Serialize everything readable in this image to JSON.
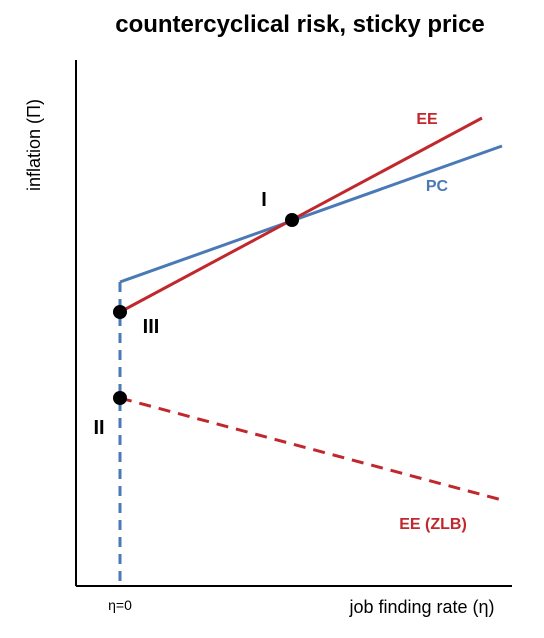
{
  "title": "countercyclical risk, sticky price",
  "axes": {
    "x_label": "job finding rate (η)",
    "y_label": "inflation  (Π)",
    "x_tick_label": "η=0"
  },
  "curves": {
    "ee": {
      "label": "EE",
      "color": "#c0282d",
      "style": "solid"
    },
    "pc": {
      "label": "PC",
      "color": "#4a7ab5",
      "style": "solid"
    },
    "ee_zlb": {
      "label": "EE (ZLB)",
      "color": "#c0282d",
      "style": "dashed"
    },
    "pc_vertical": {
      "color": "#4a7ab5",
      "style": "dashed"
    }
  },
  "points": {
    "i": {
      "label": "I"
    },
    "ii": {
      "label": "II"
    },
    "iii": {
      "label": "III"
    }
  },
  "colors": {
    "axis": "#000000",
    "point": "#000000",
    "text": "#000000"
  }
}
